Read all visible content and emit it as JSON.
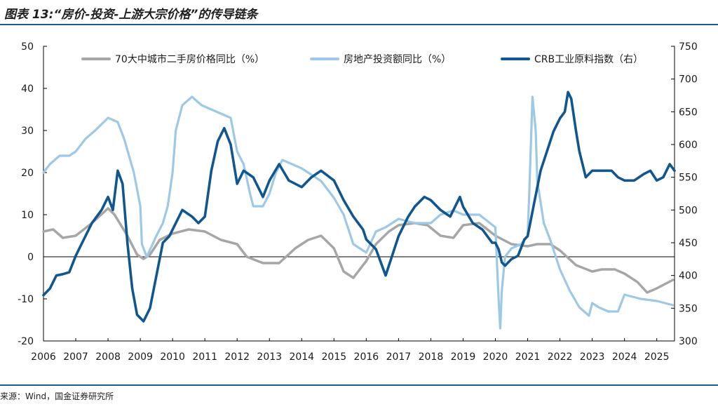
{
  "header": {
    "title": "图表 13:“房价-投资-上游大宗价格”的传导链条"
  },
  "footer": {
    "source": "来源：Wind，国金证券研究所"
  },
  "colors": {
    "rule": "#1d5c8c",
    "series_gray": "#a6a6a6",
    "series_lightblue": "#9dc8e6",
    "series_darkblue": "#11578f"
  },
  "chart_data": {
    "type": "line",
    "title": "",
    "grid": false,
    "legend_position": "top",
    "x_axis": {
      "ticks": [
        "2006",
        "2007",
        "2008",
        "2009",
        "2010",
        "2011",
        "2012",
        "2013",
        "2014",
        "2015",
        "2016",
        "2017",
        "2018",
        "2019",
        "2020",
        "2021",
        "2022",
        "2023",
        "2024",
        "2025"
      ],
      "range": [
        2006.0,
        2025.55
      ]
    },
    "y_left": {
      "range": [
        -20,
        50
      ],
      "ticks": [
        -20,
        -10,
        0,
        10,
        20,
        30,
        40,
        50
      ]
    },
    "y_right": {
      "range": [
        300,
        750
      ],
      "ticks": [
        300,
        350,
        400,
        450,
        500,
        550,
        600,
        650,
        700,
        750
      ]
    },
    "series": [
      {
        "name": "70大中城市二手房价格同比（%）",
        "axis": "left",
        "color": "#a6a6a6",
        "x": [
          2006.0,
          2006.3,
          2006.6,
          2007.0,
          2007.5,
          2008.0,
          2008.2,
          2008.6,
          2008.9,
          2009.1,
          2009.3,
          2009.6,
          2010.0,
          2010.5,
          2011.0,
          2011.5,
          2012.0,
          2012.3,
          2012.8,
          2013.3,
          2013.8,
          2014.2,
          2014.6,
          2015.0,
          2015.3,
          2015.6,
          2016.0,
          2016.3,
          2016.7,
          2017.0,
          2017.5,
          2017.9,
          2018.3,
          2018.7,
          2019.0,
          2019.5,
          2020.0,
          2020.5,
          2021.0,
          2021.3,
          2021.7,
          2022.0,
          2022.5,
          2023.0,
          2023.3,
          2023.7,
          2024.0,
          2024.4,
          2024.7,
          2025.0,
          2025.5
        ],
        "values": [
          6,
          6.5,
          4.5,
          5,
          8,
          11.5,
          10,
          5,
          0.5,
          -0.5,
          0.5,
          4,
          5.5,
          6.5,
          6,
          4,
          3,
          0,
          -1.5,
          -1.5,
          2,
          4,
          5,
          2,
          -3.5,
          -5,
          -1,
          3,
          6,
          7.5,
          8,
          7.5,
          5,
          4.5,
          7.5,
          8,
          5,
          3,
          2.5,
          3,
          3,
          1.5,
          -2,
          -3.5,
          -3,
          -3,
          -4,
          -6,
          -8.5,
          -7.5,
          -5.5
        ]
      },
      {
        "name": "房地产投资额同比（%）",
        "axis": "left",
        "color": "#9dc8e6",
        "x": [
          2006.0,
          2006.2,
          2006.5,
          2006.8,
          2007.0,
          2007.3,
          2007.6,
          2008.0,
          2008.3,
          2008.5,
          2008.8,
          2009.0,
          2009.05,
          2009.2,
          2009.5,
          2009.7,
          2009.85,
          2010.0,
          2010.1,
          2010.3,
          2010.6,
          2010.9,
          2011.2,
          2011.5,
          2011.8,
          2012.0,
          2012.2,
          2012.4,
          2012.5,
          2012.8,
          2013.0,
          2013.2,
          2013.4,
          2013.7,
          2014.0,
          2014.2,
          2014.6,
          2015.0,
          2015.3,
          2015.6,
          2016.0,
          2016.3,
          2016.6,
          2017.0,
          2017.5,
          2018.0,
          2018.3,
          2018.7,
          2019.0,
          2019.5,
          2020.0,
          2020.1,
          2020.15,
          2020.2,
          2020.3,
          2020.5,
          2020.8,
          2021.0,
          2021.05,
          2021.15,
          2021.25,
          2021.3,
          2021.5,
          2021.7,
          2022.0,
          2022.3,
          2022.6,
          2022.9,
          2023.0,
          2023.2,
          2023.5,
          2023.8,
          2024.0,
          2024.5,
          2025.0,
          2025.5
        ],
        "values": [
          20,
          22,
          24,
          24,
          25,
          28,
          30,
          33,
          32,
          28,
          20,
          12,
          3,
          0,
          5,
          8,
          12,
          20,
          30,
          36,
          38,
          36,
          35,
          34,
          33,
          25,
          22,
          15,
          12,
          12,
          15,
          20,
          23,
          22,
          21,
          20,
          18,
          14,
          10,
          3,
          1,
          6,
          7,
          9,
          8,
          8,
          10,
          11,
          10,
          10,
          7,
          -10,
          -17,
          -8,
          0,
          2,
          3,
          5,
          15,
          38,
          30,
          18,
          8,
          4,
          -3,
          -8,
          -12,
          -14,
          -11,
          -12,
          -13,
          -13,
          -9,
          -10,
          -10.5,
          -11.5
        ]
      },
      {
        "name": "CRB工业原料指数（右）",
        "axis": "right",
        "color": "#11578f",
        "x": [
          2006.0,
          2006.2,
          2006.4,
          2006.6,
          2006.8,
          2007.0,
          2007.2,
          2007.5,
          2007.8,
          2008.0,
          2008.15,
          2008.3,
          2008.45,
          2008.6,
          2008.75,
          2008.9,
          2009.0,
          2009.1,
          2009.3,
          2009.5,
          2009.7,
          2009.9,
          2010.0,
          2010.3,
          2010.6,
          2010.8,
          2011.0,
          2011.2,
          2011.4,
          2011.6,
          2011.8,
          2012.0,
          2012.2,
          2012.5,
          2012.8,
          2013.0,
          2013.3,
          2013.6,
          2014.0,
          2014.3,
          2014.6,
          2015.0,
          2015.3,
          2015.6,
          2015.9,
          2016.0,
          2016.3,
          2016.6,
          2016.9,
          2017.0,
          2017.3,
          2017.5,
          2017.8,
          2018.0,
          2018.3,
          2018.6,
          2018.9,
          2019.0,
          2019.3,
          2019.6,
          2019.9,
          2020.0,
          2020.1,
          2020.2,
          2020.3,
          2020.5,
          2020.7,
          2020.9,
          2021.0,
          2021.2,
          2021.4,
          2021.6,
          2021.8,
          2022.0,
          2022.15,
          2022.25,
          2022.35,
          2022.5,
          2022.6,
          2022.8,
          2023.0,
          2023.3,
          2023.6,
          2023.8,
          2024.0,
          2024.3,
          2024.6,
          2024.8,
          2025.0,
          2025.2,
          2025.4,
          2025.55
        ],
        "values": [
          370,
          380,
          400,
          402,
          405,
          430,
          450,
          480,
          500,
          520,
          500,
          560,
          540,
          450,
          380,
          340,
          335,
          330,
          350,
          400,
          450,
          460,
          470,
          500,
          490,
          480,
          490,
          560,
          605,
          625,
          600,
          540,
          560,
          550,
          520,
          545,
          570,
          545,
          535,
          550,
          560,
          545,
          515,
          490,
          470,
          455,
          440,
          400,
          445,
          460,
          490,
          505,
          520,
          515,
          500,
          490,
          520,
          505,
          480,
          470,
          450,
          450,
          440,
          420,
          415,
          425,
          430,
          455,
          460,
          510,
          560,
          590,
          620,
          640,
          650,
          680,
          670,
          620,
          590,
          550,
          560,
          560,
          560,
          550,
          545,
          545,
          555,
          560,
          545,
          550,
          570,
          560
        ]
      }
    ]
  }
}
